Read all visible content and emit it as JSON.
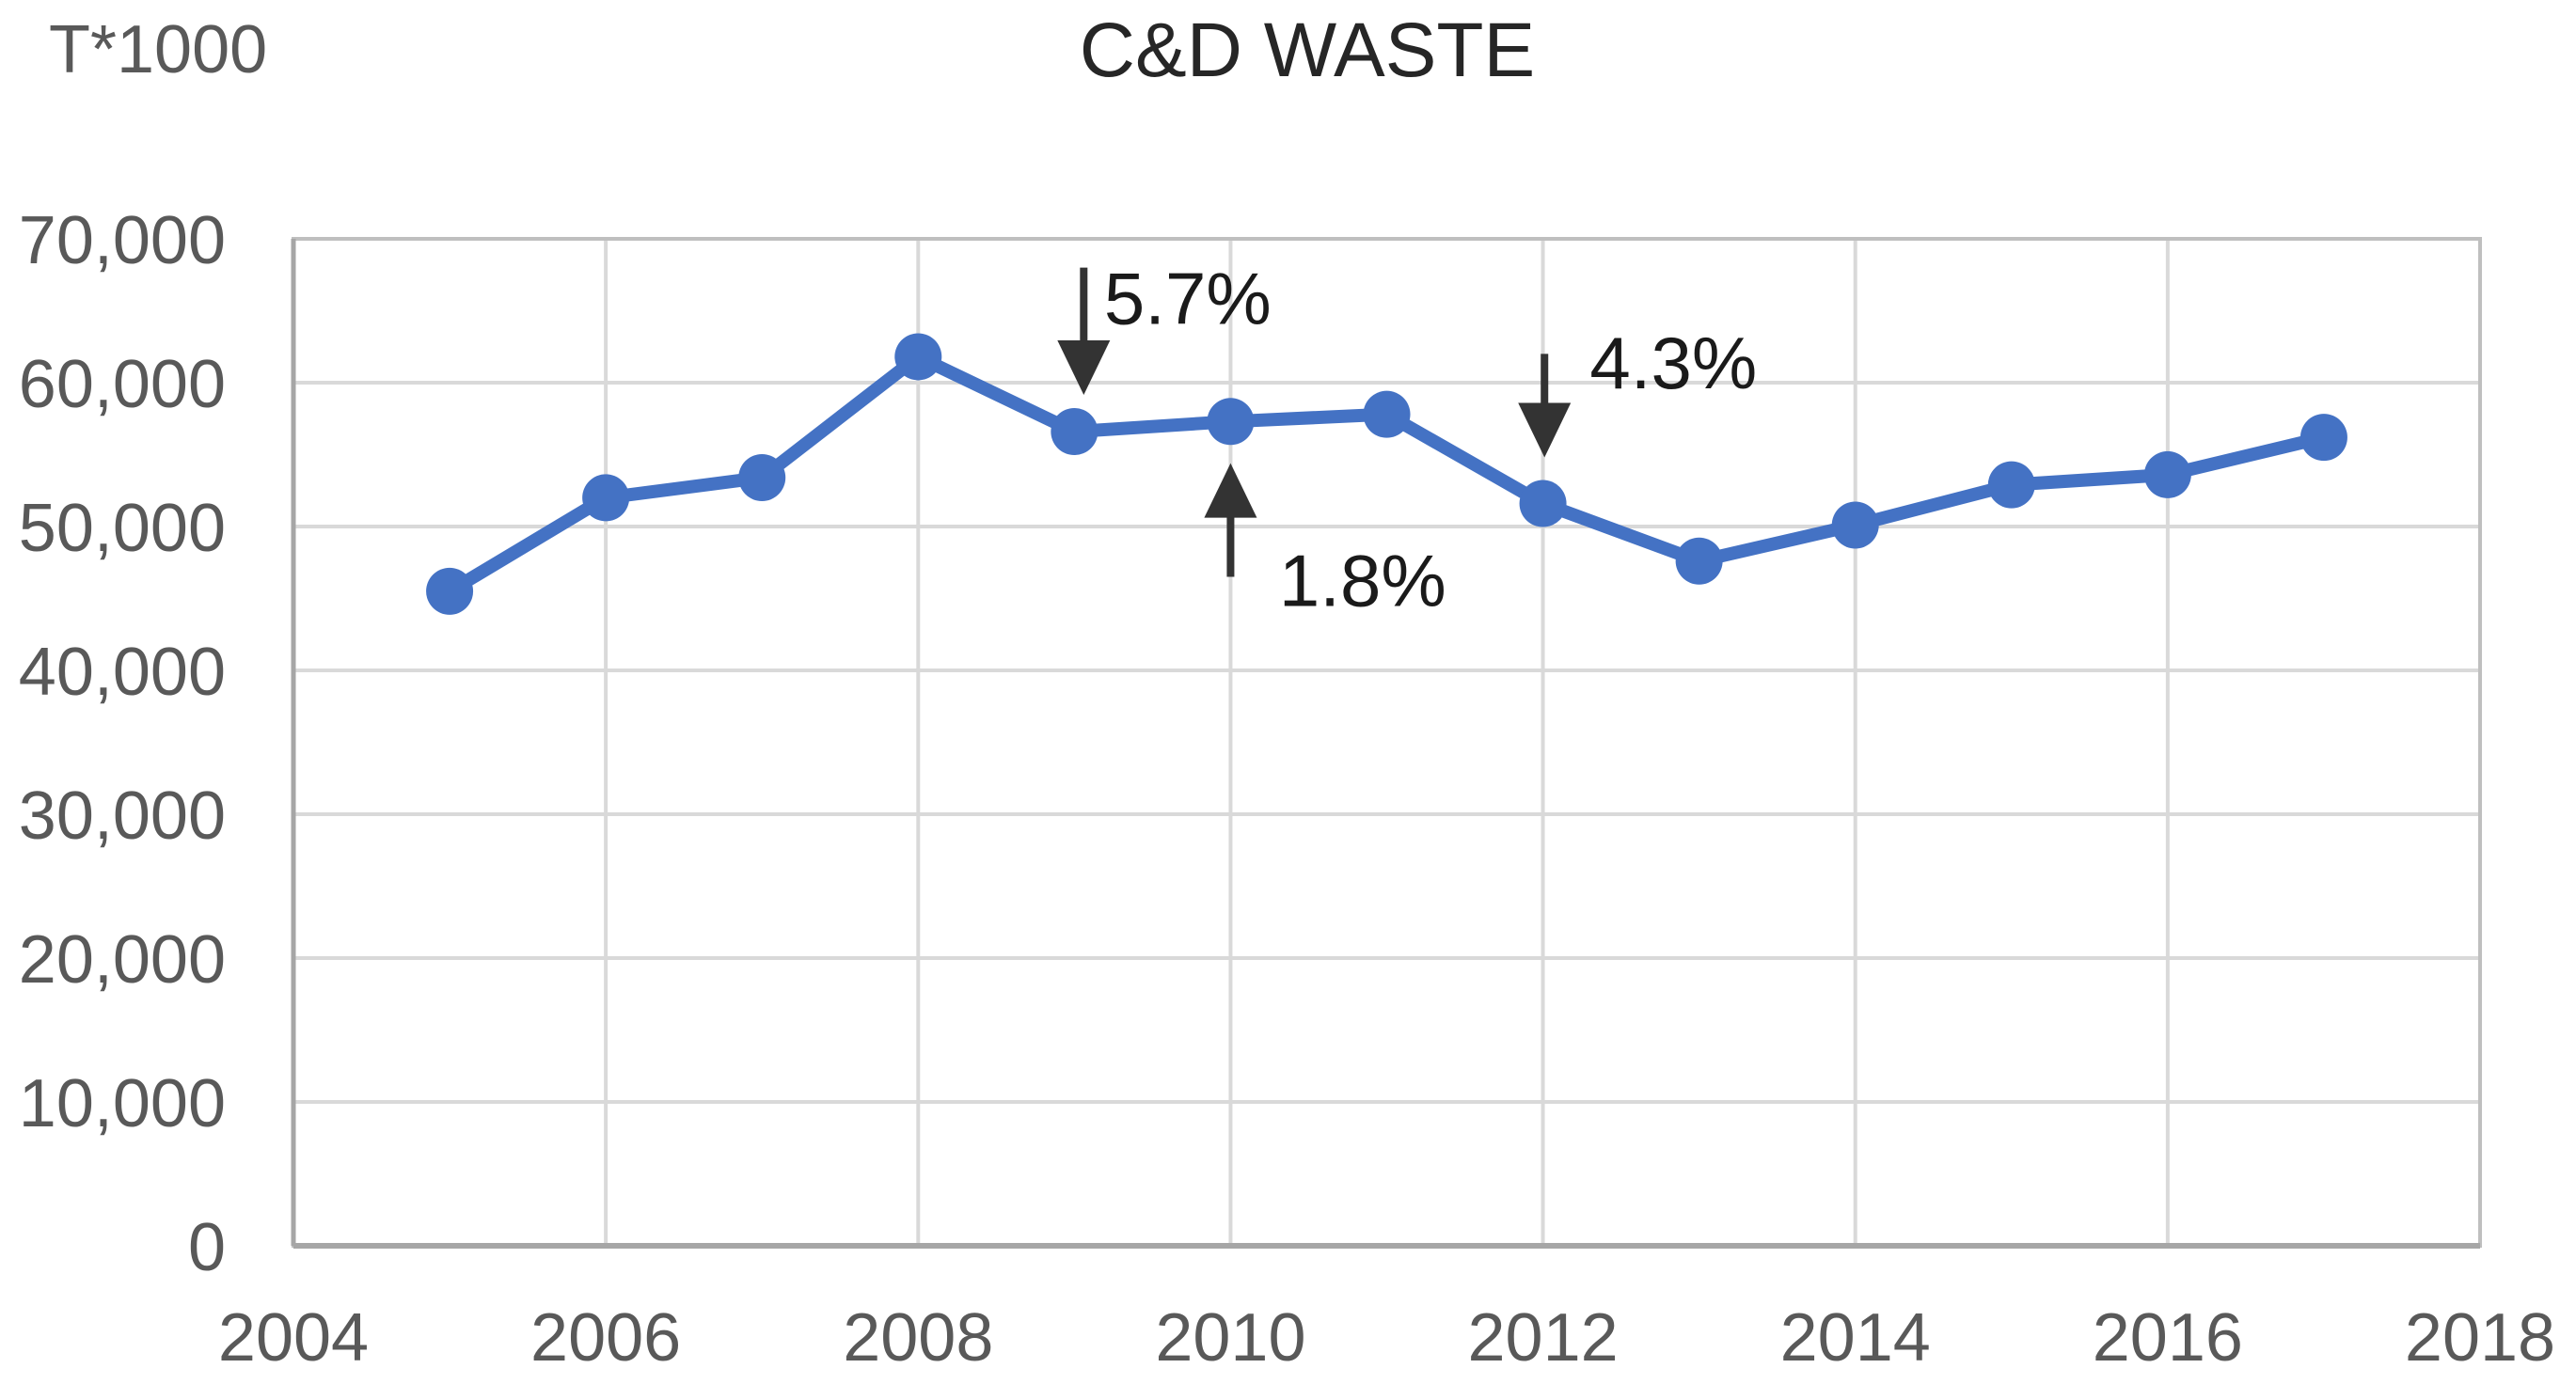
{
  "chart": {
    "title": "C&D WASTE",
    "y_axis_unit": "T*1000"
  },
  "chart_data": {
    "type": "line",
    "title": "C&D WASTE",
    "ylabel": "T*1000",
    "xlabel": "",
    "x": [
      2005,
      2006,
      2007,
      2008,
      2009,
      2010,
      2011,
      2012,
      2013,
      2014,
      2015,
      2016,
      2017
    ],
    "series": [
      {
        "name": "C&D waste (T*1000)",
        "values": [
          45500,
          52000,
          53400,
          61800,
          56600,
          57300,
          57800,
          51600,
          47600,
          50100,
          52900,
          53600,
          56200
        ]
      }
    ],
    "xlim": [
      2004,
      2018
    ],
    "ylim": [
      0,
      70000
    ],
    "x_tick_labels": [
      "2004",
      "2006",
      "2008",
      "2010",
      "2012",
      "2014",
      "2016",
      "2018"
    ],
    "y_tick_labels": [
      "0",
      "10,000",
      "20,000",
      "30,000",
      "40,000",
      "50,000",
      "60,000",
      "70,000"
    ],
    "grid": true,
    "legend": false,
    "marker": "circle",
    "annotations": [
      {
        "text": "5.7%",
        "direction": "down",
        "arrow_x": 2009.06,
        "arrow_from": 68000,
        "arrow_tip": 59150,
        "label_x": 2009.19,
        "label_y": 65900
      },
      {
        "text": "1.8%",
        "direction": "up",
        "arrow_x": 2010.0,
        "arrow_from": 46500,
        "arrow_tip": 54400,
        "label_x": 2010.31,
        "label_y": 46300
      },
      {
        "text": "4.3%",
        "direction": "down",
        "arrow_x": 2012.01,
        "arrow_from": 62000,
        "arrow_tip": 54800,
        "label_x": 2012.3,
        "label_y": 61450
      }
    ],
    "colors": {
      "line": "#4472C4",
      "grid": "#D9D9D9",
      "border": "#BFBFBF",
      "axis": "#A6A6A6",
      "tick_text": "#595959",
      "title_text": "#262626",
      "annotation": "#333333"
    }
  }
}
